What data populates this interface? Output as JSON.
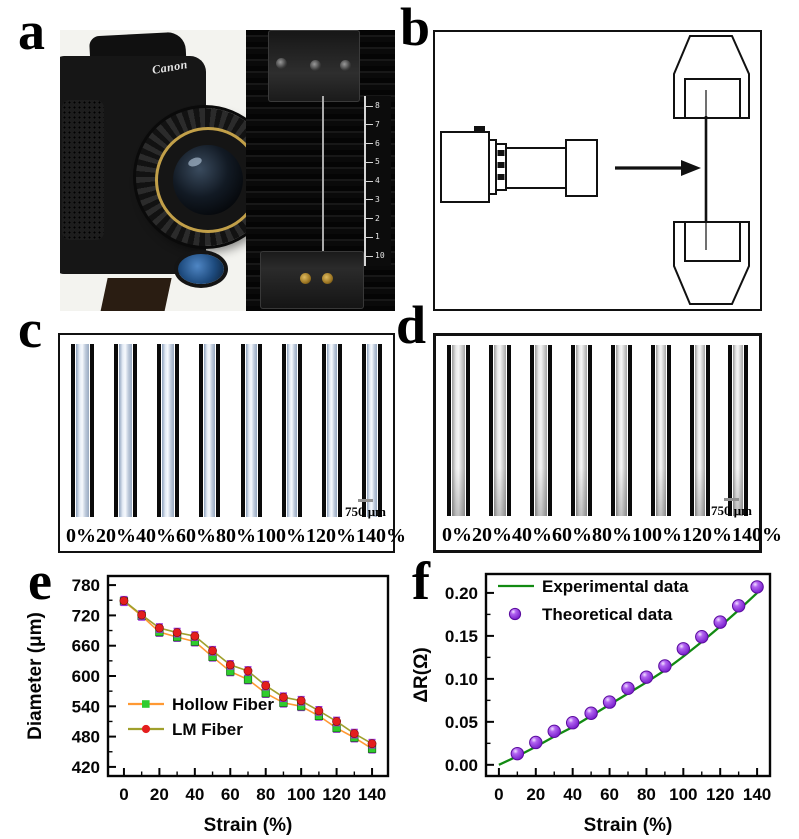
{
  "panels": [
    "a",
    "b",
    "c",
    "d",
    "e",
    "f"
  ],
  "panel_a": {
    "camera_brand": "Canon",
    "ruler_numbers": [
      "8",
      "7",
      "6",
      "5",
      "4",
      "3",
      "2",
      "1",
      "10"
    ]
  },
  "panel_c": {
    "strain_labels": [
      "0%",
      "20%",
      "40%",
      "60%",
      "80%",
      "100%",
      "120%",
      "140%"
    ],
    "scale_bar_label": "750 μm"
  },
  "panel_d": {
    "strain_labels": [
      "0%",
      "20%",
      "40%",
      "60%",
      "80%",
      "100%",
      "120%",
      "140%"
    ],
    "scale_bar_label": "750 μm"
  },
  "chart_data": [
    {
      "id": "e",
      "type": "line",
      "title": "",
      "xlabel": "Strain (%)",
      "ylabel": "Diameter (μm)",
      "xlim": [
        -9,
        149
      ],
      "ylim": [
        402,
        798
      ],
      "xticks": [
        0,
        20,
        40,
        60,
        80,
        100,
        120,
        140
      ],
      "yticks": [
        420,
        480,
        540,
        600,
        660,
        720,
        780
      ],
      "xminor": 10,
      "yminor": 30,
      "ydec": 0,
      "x": [
        0,
        10,
        20,
        30,
        40,
        50,
        60,
        70,
        80,
        90,
        100,
        110,
        120,
        130,
        140
      ],
      "series": [
        {
          "name": "Hollow Fiber",
          "marker": "square",
          "marker_color": "#2ecc2e",
          "line_color": "#ff9933",
          "values": [
            748,
            719,
            687,
            677,
            668,
            638,
            609,
            593,
            566,
            547,
            540,
            521,
            497,
            478,
            456
          ],
          "error": 8
        },
        {
          "name": "LM Fiber",
          "marker": "circle",
          "marker_color": "#e41e1e",
          "line_color": "#a0a02c",
          "values": [
            749,
            721,
            695,
            686,
            679,
            650,
            622,
            610,
            581,
            558,
            551,
            531,
            510,
            486,
            466
          ],
          "error": 8
        }
      ],
      "error_cap_color": "#9b30d9",
      "legend_position": "center-left",
      "grid": false
    },
    {
      "id": "f",
      "type": "line+scatter",
      "title": "",
      "xlabel": "Strain (%)",
      "ylabel": "ΔR(Ω)",
      "xlim": [
        -7,
        147
      ],
      "ylim": [
        -0.013,
        0.222
      ],
      "xticks": [
        0,
        20,
        40,
        60,
        80,
        100,
        120,
        140
      ],
      "yticks": [
        0.0,
        0.05,
        0.1,
        0.15,
        0.2
      ],
      "xminor": 10,
      "yminor": 0.025,
      "ydec": 2,
      "series": [
        {
          "name": "Experimental data",
          "type": "line",
          "color": "#128a12",
          "x": [
            0,
            10,
            20,
            30,
            40,
            50,
            60,
            70,
            80,
            90,
            100,
            110,
            120,
            130,
            140
          ],
          "values": [
            0.0,
            0.01,
            0.021,
            0.033,
            0.044,
            0.057,
            0.07,
            0.083,
            0.096,
            0.11,
            0.126,
            0.143,
            0.161,
            0.18,
            0.2
          ]
        },
        {
          "name": "Theoretical data",
          "type": "scatter",
          "color": "#8a2be2",
          "x": [
            10,
            20,
            30,
            40,
            50,
            60,
            70,
            80,
            90,
            100,
            110,
            120,
            130,
            140
          ],
          "values": [
            0.013,
            0.026,
            0.039,
            0.049,
            0.06,
            0.073,
            0.089,
            0.102,
            0.115,
            0.135,
            0.149,
            0.166,
            0.185,
            0.207
          ]
        }
      ],
      "legend_position": "top-left",
      "grid": false
    }
  ]
}
